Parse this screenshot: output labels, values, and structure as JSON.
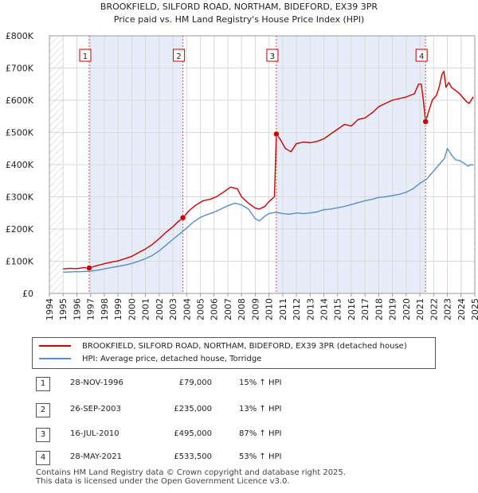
{
  "chart_data": {
    "type": "line",
    "title": "BROOKFIELD, SILFORD ROAD, NORTHAM, BIDEFORD, EX39 3PR",
    "subtitle": "Price paid vs. HM Land Registry's House Price Index (HPI)",
    "xlabel": "",
    "ylabel": "",
    "xlim": [
      1994.0,
      2025.0
    ],
    "ylim": [
      0,
      800000
    ],
    "x_ticks": [
      1994,
      1995,
      1996,
      1997,
      1998,
      1999,
      2000,
      2001,
      2002,
      2003,
      2004,
      2005,
      2006,
      2007,
      2008,
      2009,
      2010,
      2011,
      2012,
      2013,
      2014,
      2015,
      2016,
      2017,
      2018,
      2019,
      2020,
      2021,
      2022,
      2023,
      2024,
      2025
    ],
    "y_ticks": [
      {
        "value": 0,
        "label": "£0"
      },
      {
        "value": 100000,
        "label": "£100K"
      },
      {
        "value": 200000,
        "label": "£200K"
      },
      {
        "value": 300000,
        "label": "£300K"
      },
      {
        "value": 400000,
        "label": "£400K"
      },
      {
        "value": 500000,
        "label": "£500K"
      },
      {
        "value": 600000,
        "label": "£600K"
      },
      {
        "value": 700000,
        "label": "£700K"
      },
      {
        "value": 800000,
        "label": "£800K"
      }
    ],
    "grid": true,
    "data_range": [
      1995.0,
      2024.9
    ],
    "shaded_regions": [
      [
        1996.9,
        2003.73
      ],
      [
        2010.54,
        2021.41
      ]
    ],
    "series": [
      {
        "name": "BROOKFIELD, SILFORD ROAD, NORTHAM, BIDEFORD, EX39 3PR (detached house)",
        "color": "#cc0000",
        "x": [
          1995.0,
          1995.5,
          1996.0,
          1996.5,
          1996.9,
          1997.5,
          1998.0,
          1998.5,
          1999.0,
          1999.5,
          2000.0,
          2000.5,
          2001.0,
          2001.5,
          2002.0,
          2002.5,
          2003.0,
          2003.3,
          2003.73,
          2004.2,
          2004.7,
          2005.2,
          2005.7,
          2006.2,
          2006.7,
          2007.2,
          2007.7,
          2008.0,
          2008.5,
          2009.0,
          2009.3,
          2009.7,
          2010.0,
          2010.4,
          2010.54,
          2010.8,
          2011.2,
          2011.6,
          2012.0,
          2012.5,
          2013.0,
          2013.5,
          2014.0,
          2014.5,
          2015.0,
          2015.5,
          2016.0,
          2016.5,
          2017.0,
          2017.5,
          2018.0,
          2018.5,
          2019.0,
          2019.5,
          2020.0,
          2020.3,
          2020.6,
          2020.9,
          2021.1,
          2021.25,
          2021.41,
          2021.6,
          2021.9,
          2022.2,
          2022.4,
          2022.6,
          2022.75,
          2022.9,
          2023.1,
          2023.3,
          2023.6,
          2023.9,
          2024.2,
          2024.4,
          2024.6,
          2024.8,
          2024.9
        ],
        "y": [
          76000,
          78000,
          77000,
          80000,
          79000,
          87000,
          92000,
          97000,
          101000,
          108000,
          115000,
          127000,
          138000,
          152000,
          170000,
          190000,
          207000,
          220000,
          235000,
          258000,
          275000,
          288000,
          292000,
          301000,
          315000,
          330000,
          325000,
          300000,
          280000,
          265000,
          262000,
          270000,
          285000,
          300000,
          495000,
          480000,
          450000,
          440000,
          465000,
          470000,
          468000,
          472000,
          480000,
          495000,
          510000,
          525000,
          520000,
          540000,
          545000,
          560000,
          580000,
          590000,
          600000,
          605000,
          610000,
          615000,
          620000,
          650000,
          650000,
          600000,
          533500,
          560000,
          600000,
          615000,
          640000,
          680000,
          690000,
          640000,
          655000,
          640000,
          630000,
          620000,
          605000,
          595000,
          590000,
          605000,
          610000
        ]
      },
      {
        "name": "HPI: Average price, detached house, Torridge",
        "color": "#5b8cc8",
        "x": [
          1995.0,
          1995.5,
          1996.0,
          1996.5,
          1997.0,
          1997.5,
          1998.0,
          1998.5,
          1999.0,
          1999.5,
          2000.0,
          2000.5,
          2001.0,
          2001.5,
          2002.0,
          2002.5,
          2003.0,
          2003.5,
          2004.0,
          2004.5,
          2005.0,
          2005.5,
          2006.0,
          2006.5,
          2007.0,
          2007.5,
          2008.0,
          2008.5,
          2009.0,
          2009.3,
          2009.7,
          2010.0,
          2010.5,
          2011.0,
          2011.5,
          2012.0,
          2012.5,
          2013.0,
          2013.5,
          2014.0,
          2014.5,
          2015.0,
          2015.5,
          2016.0,
          2016.5,
          2017.0,
          2017.5,
          2018.0,
          2018.5,
          2019.0,
          2019.5,
          2020.0,
          2020.5,
          2021.0,
          2021.5,
          2022.0,
          2022.5,
          2022.8,
          2023.0,
          2023.3,
          2023.6,
          2023.9,
          2024.2,
          2024.5,
          2024.7,
          2024.9
        ],
        "y": [
          66000,
          67000,
          67500,
          68000,
          69000,
          72000,
          76000,
          80000,
          84000,
          88000,
          93000,
          100000,
          108000,
          118000,
          132000,
          150000,
          168000,
          185000,
          203000,
          222000,
          236000,
          245000,
          252000,
          262000,
          272000,
          280000,
          275000,
          262000,
          232000,
          225000,
          240000,
          248000,
          252000,
          248000,
          246000,
          250000,
          248000,
          250000,
          253000,
          260000,
          262000,
          266000,
          270000,
          276000,
          282000,
          288000,
          292000,
          298000,
          300000,
          304000,
          308000,
          314000,
          325000,
          342000,
          355000,
          380000,
          405000,
          420000,
          450000,
          430000,
          415000,
          412000,
          405000,
          395000,
          400000,
          398000
        ]
      }
    ],
    "sales": [
      {
        "label": "1",
        "x": 1996.9,
        "y": 79000
      },
      {
        "label": "2",
        "x": 2003.73,
        "y": 235000
      },
      {
        "label": "3",
        "x": 2010.54,
        "y": 495000
      },
      {
        "label": "4",
        "x": 2021.41,
        "y": 533500
      }
    ]
  },
  "legend": {
    "items": [
      {
        "label": "BROOKFIELD, SILFORD ROAD, NORTHAM, BIDEFORD, EX39 3PR (detached house)",
        "color": "#cc0000"
      },
      {
        "label": "HPI: Average price, detached house, Torridge",
        "color": "#5b8cc8"
      }
    ]
  },
  "sales_table": [
    {
      "num": "1",
      "date": "28-NOV-1996",
      "price": "£79,000",
      "hpi": "15% ↑ HPI"
    },
    {
      "num": "2",
      "date": "26-SEP-2003",
      "price": "£235,000",
      "hpi": "13% ↑ HPI"
    },
    {
      "num": "3",
      "date": "16-JUL-2010",
      "price": "£495,000",
      "hpi": "87% ↑ HPI"
    },
    {
      "num": "4",
      "date": "28-MAY-2021",
      "price": "£533,500",
      "hpi": "53% ↑ HPI"
    }
  ],
  "footer": {
    "line1": "Contains HM Land Registry data © Crown copyright and database right 2025.",
    "line2": "This data is licensed under the Open Government Licence v3.0."
  }
}
